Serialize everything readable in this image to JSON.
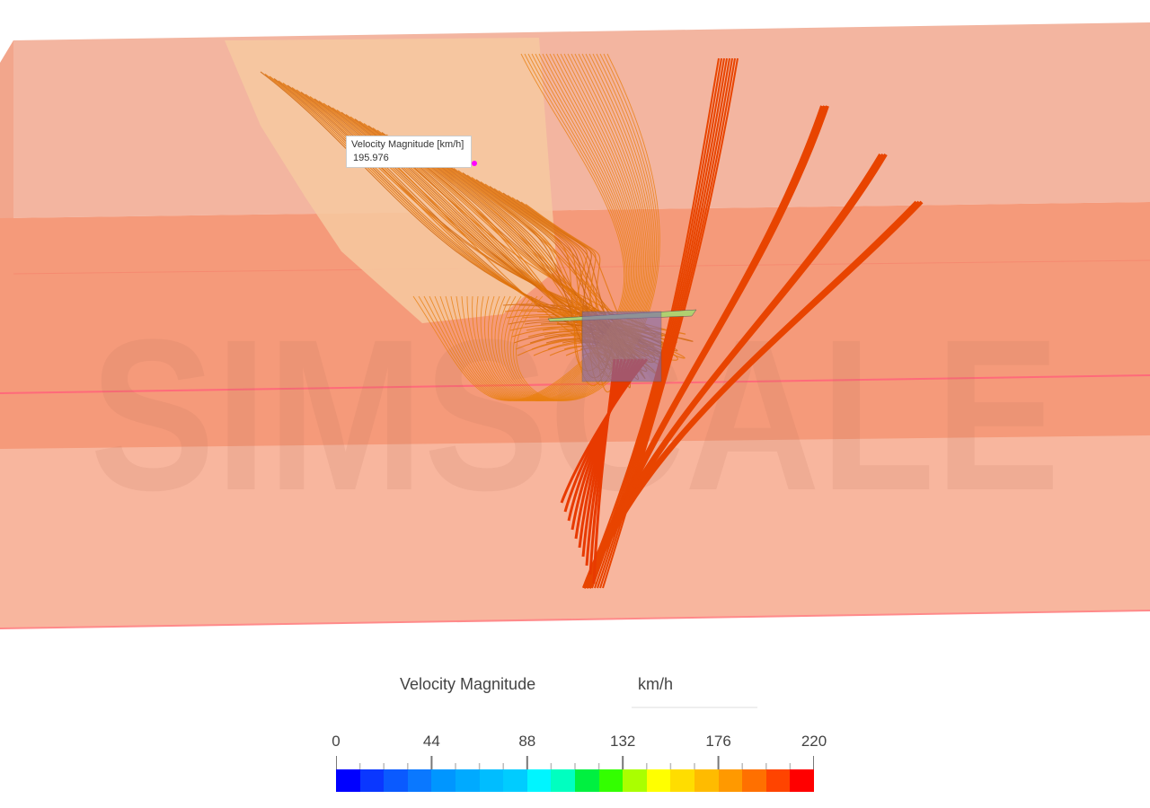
{
  "viewport": {
    "watermark": "SIMSCALE",
    "tooltip": {
      "label": "Velocity Magnitude [km/h]",
      "value": "195.976"
    }
  },
  "legend": {
    "title": "Velocity Magnitude",
    "unit": "km/h",
    "min": 0,
    "max": 220,
    "tick_labels": [
      "0",
      "44",
      "88",
      "132",
      "176",
      "220"
    ],
    "colors": [
      "#0000ff",
      "#0a37ff",
      "#0a5aff",
      "#0a78ff",
      "#0096ff",
      "#00aaff",
      "#00bdff",
      "#00ccff",
      "#00f5ff",
      "#00ffc0",
      "#00f040",
      "#33ff00",
      "#aaff00",
      "#ffff00",
      "#ffdd00",
      "#ffbb00",
      "#ff9900",
      "#ff7000",
      "#ff4400",
      "#ff0000"
    ]
  }
}
